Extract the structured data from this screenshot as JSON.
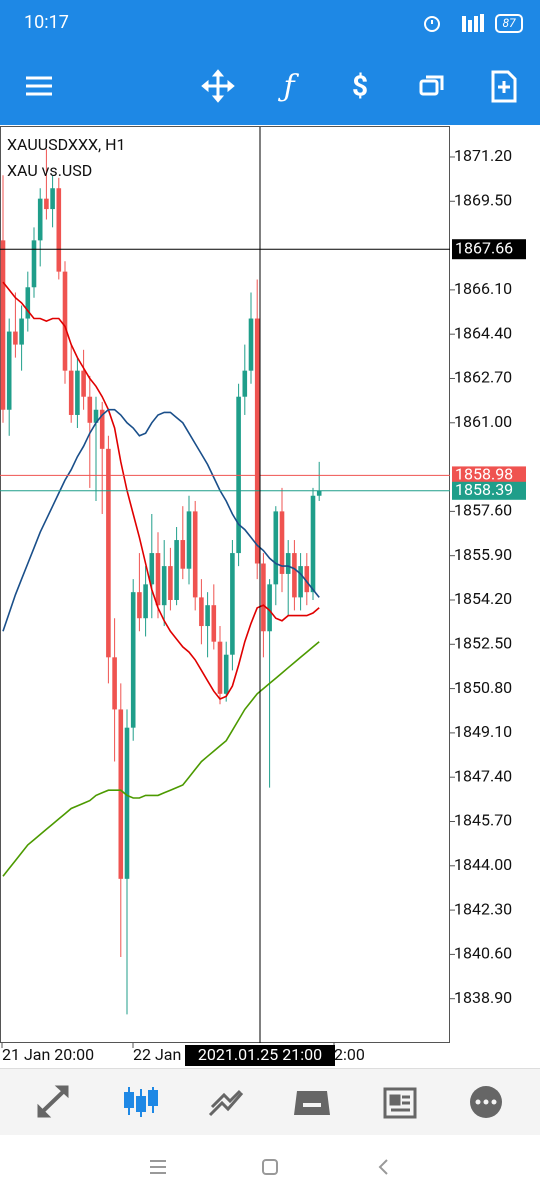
{
  "status_bar": {
    "time": "10:17",
    "battery": "87"
  },
  "chart_data": {
    "type": "candlestick",
    "title": "XAUUSDXXX, H1",
    "subtitle": "XAU vs.USD",
    "ylim": [
      1837.2,
      1872.35
    ],
    "yticks": [
      {
        "value": 1871.2,
        "label": "1871.20"
      },
      {
        "value": 1869.5,
        "label": "1869.50"
      },
      {
        "value": 1866.1,
        "label": "1866.10"
      },
      {
        "value": 1864.4,
        "label": "1864.40"
      },
      {
        "value": 1862.7,
        "label": "1862.70"
      },
      {
        "value": 1861.0,
        "label": "1861.00"
      },
      {
        "value": 1857.6,
        "label": "1857.60"
      },
      {
        "value": 1855.9,
        "label": "1855.90"
      },
      {
        "value": 1854.2,
        "label": "1854.20"
      },
      {
        "value": 1852.5,
        "label": "1852.50"
      },
      {
        "value": 1850.8,
        "label": "1850.80"
      },
      {
        "value": 1849.1,
        "label": "1849.10"
      },
      {
        "value": 1847.4,
        "label": "1847.40"
      },
      {
        "value": 1845.7,
        "label": "1845.70"
      },
      {
        "value": 1844.0,
        "label": "1844.00"
      },
      {
        "value": 1842.3,
        "label": "1842.30"
      },
      {
        "value": 1840.6,
        "label": "1840.60"
      },
      {
        "value": 1838.9,
        "label": "1838.90"
      }
    ],
    "x_labels": [
      "21 Jan 20:00",
      "22 Jan",
      "2:00"
    ],
    "crosshair": {
      "time": "2021.01.25 21:00",
      "price": 1867.66
    },
    "bid": 1858.98,
    "ask": 1858.39,
    "up_color": "#1f9e8a",
    "down_color": "#ef5350",
    "open": [
      1868,
      1861.5,
      1864.5,
      1864,
      1865,
      1866.2,
      1868,
      1869.6,
      1869.2,
      1870,
      1866.8,
      1863,
      1861.3,
      1863,
      1862,
      1861,
      1861.5,
      1860,
      1852,
      1850,
      1843.5,
      1849.3,
      1854.5,
      1853.5,
      1854.8,
      1856,
      1854,
      1855.5,
      1854.2,
      1856.5,
      1855.4,
      1857.6,
      1854.3,
      1853.2,
      1854,
      1852.6,
      1850.6,
      1852.1,
      1856,
      1862,
      1863,
      1865,
      1855.6,
      1853,
      1854.8,
      1857.6,
      1855.2,
      1856,
      1854.3,
      1855.5,
      1854.5,
      1858.2
    ],
    "high": [
      1870.5,
      1865,
      1866,
      1865.5,
      1866.8,
      1868.5,
      1870,
      1871.5,
      1870.5,
      1870.4,
      1867.2,
      1864,
      1863.5,
      1863.8,
      1862.8,
      1862,
      1861.8,
      1860.5,
      1853.5,
      1851,
      1850,
      1855,
      1856,
      1855.5,
      1857.5,
      1856.8,
      1856.5,
      1856.2,
      1857,
      1857.8,
      1858.2,
      1858,
      1855,
      1854.5,
      1854.8,
      1853.2,
      1852.6,
      1856.5,
      1862.5,
      1864,
      1866,
      1866.5,
      1856,
      1855,
      1857.8,
      1858.5,
      1856.5,
      1856.5,
      1856,
      1856,
      1858.5,
      1859.5
    ],
    "low": [
      1861,
      1860.5,
      1863.5,
      1863,
      1864.5,
      1865.8,
      1867,
      1868.8,
      1868.5,
      1866.5,
      1862.5,
      1861,
      1860.8,
      1861.5,
      1858.5,
      1858,
      1857.5,
      1851,
      1848,
      1840.5,
      1838.3,
      1848.8,
      1853,
      1852.8,
      1853.5,
      1853.5,
      1853.2,
      1853.8,
      1854,
      1855,
      1854.8,
      1853.8,
      1852.5,
      1852,
      1852.3,
      1850.2,
      1850.3,
      1851.5,
      1855.5,
      1861.3,
      1862.5,
      1855,
      1852,
      1847,
      1854,
      1854.5,
      1853.6,
      1853.8,
      1853.8,
      1854,
      1854.2,
      1858
    ],
    "close": [
      1861.5,
      1864.5,
      1864,
      1865,
      1866.2,
      1868,
      1869.6,
      1869.2,
      1870,
      1866.8,
      1863,
      1861.3,
      1863,
      1862,
      1861,
      1861.5,
      1860,
      1852,
      1850,
      1843.5,
      1849.3,
      1854.5,
      1853.5,
      1854.8,
      1856,
      1854,
      1855.5,
      1854.2,
      1856.5,
      1855.4,
      1857.6,
      1854.3,
      1853.2,
      1854,
      1852.6,
      1850.6,
      1852.1,
      1856,
      1862,
      1863,
      1865,
      1855.6,
      1853,
      1854.8,
      1857.6,
      1855.2,
      1856,
      1854.3,
      1855.5,
      1854.5,
      1858.2,
      1858.4
    ],
    "series": [
      {
        "color": "#e00000",
        "values": [
          1866.4,
          1866.1,
          1865.8,
          1865.6,
          1865.3,
          1865.0,
          1865.0,
          1864.9,
          1865.0,
          1865.0,
          1864.7,
          1864.0,
          1863.5,
          1863.1,
          1862.7,
          1862.4,
          1862.0,
          1861.5,
          1860.8,
          1859.5,
          1858.4,
          1857.5,
          1856.6,
          1855.6,
          1854.6,
          1853.9,
          1853.4,
          1853.0,
          1852.7,
          1852.4,
          1852.2,
          1851.9,
          1851.5,
          1851.1,
          1850.7,
          1850.4,
          1850.5,
          1850.9,
          1851.7,
          1852.6,
          1853.3,
          1853.9,
          1854.0,
          1853.8,
          1853.5,
          1853.4,
          1853.6,
          1853.6,
          1853.6,
          1853.6,
          1853.7,
          1853.9
        ]
      },
      {
        "color": "#1a4f8a",
        "values": [
          1853.0,
          1853.7,
          1854.4,
          1855.0,
          1855.6,
          1856.2,
          1856.8,
          1857.3,
          1857.8,
          1858.3,
          1858.8,
          1859.2,
          1859.7,
          1860.1,
          1860.6,
          1861.0,
          1861.3,
          1861.5,
          1861.5,
          1861.3,
          1861.0,
          1860.8,
          1860.5,
          1860.6,
          1861.0,
          1861.3,
          1861.4,
          1861.4,
          1861.2,
          1861.0,
          1860.6,
          1860.2,
          1859.8,
          1859.4,
          1858.9,
          1858.4,
          1858.0,
          1857.5,
          1857.1,
          1856.9,
          1856.6,
          1856.3,
          1856.1,
          1855.8,
          1855.6,
          1855.5,
          1855.5,
          1855.4,
          1855.2,
          1854.9,
          1854.6,
          1854.3
        ]
      },
      {
        "color": "#4c9a00",
        "values": [
          1843.6,
          1843.9,
          1844.2,
          1844.5,
          1844.8,
          1845.0,
          1845.2,
          1845.4,
          1845.6,
          1845.8,
          1846.0,
          1846.2,
          1846.3,
          1846.4,
          1846.5,
          1846.7,
          1846.8,
          1846.9,
          1846.9,
          1846.9,
          1846.7,
          1846.6,
          1846.6,
          1846.7,
          1846.7,
          1846.7,
          1846.8,
          1846.9,
          1847.0,
          1847.1,
          1847.4,
          1847.7,
          1848.0,
          1848.2,
          1848.4,
          1848.6,
          1848.8,
          1849.2,
          1849.6,
          1850.0,
          1850.3,
          1850.6,
          1850.8,
          1851.0,
          1851.2,
          1851.4,
          1851.6,
          1851.8,
          1852.0,
          1852.2,
          1852.4,
          1852.6
        ]
      }
    ]
  }
}
